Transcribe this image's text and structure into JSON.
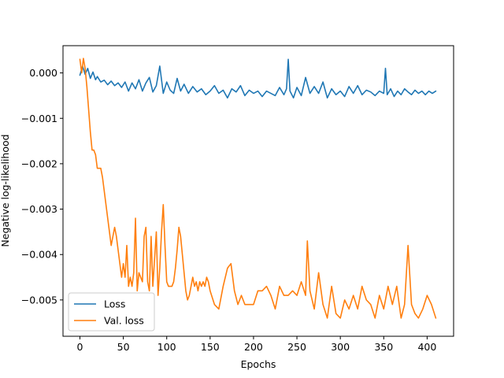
{
  "chart_data": {
    "type": "line",
    "title": "",
    "xlabel": "Epochs",
    "ylabel": "Negative log-likelihood",
    "xlim": [
      -19.5,
      430.5
    ],
    "ylim": [
      -0.0058,
      0.0006
    ],
    "xticks": [
      0,
      50,
      100,
      150,
      200,
      250,
      300,
      350,
      400
    ],
    "xtick_labels": [
      "0",
      "50",
      "100",
      "150",
      "200",
      "250",
      "300",
      "350",
      "400"
    ],
    "yticks": [
      0.0,
      -0.001,
      -0.002,
      -0.003,
      -0.004,
      -0.005
    ],
    "ytick_labels": [
      "0.000",
      "−0.001",
      "−0.002",
      "−0.003",
      "−0.004",
      "−0.005"
    ],
    "grid": false,
    "legend_position": "lower-left",
    "series": [
      {
        "name": "Loss",
        "color": "#1f77b4",
        "x": [
          0,
          3,
          6,
          9,
          12,
          15,
          18,
          20,
          24,
          28,
          32,
          36,
          40,
          44,
          48,
          52,
          56,
          60,
          64,
          68,
          72,
          76,
          80,
          84,
          88,
          92,
          96,
          100,
          104,
          108,
          112,
          116,
          120,
          125,
          130,
          135,
          140,
          145,
          150,
          155,
          160,
          165,
          170,
          175,
          180,
          185,
          190,
          195,
          200,
          205,
          210,
          215,
          220,
          225,
          230,
          235,
          238,
          240,
          242,
          246,
          250,
          255,
          260,
          265,
          270,
          275,
          280,
          285,
          290,
          295,
          300,
          305,
          310,
          315,
          320,
          325,
          330,
          335,
          340,
          345,
          350,
          352,
          354,
          358,
          362,
          366,
          370,
          374,
          378,
          382,
          386,
          390,
          394,
          398,
          402,
          406,
          410
        ],
        "values": [
          -5e-05,
          0.00015,
          -3e-05,
          0.0001,
          -0.00012,
          2e-05,
          -0.00015,
          -8e-05,
          -0.0002,
          -0.00016,
          -0.00026,
          -0.00018,
          -0.00028,
          -0.00022,
          -0.00032,
          -0.0002,
          -0.0004,
          -0.00022,
          -0.00035,
          -0.00015,
          -0.0004,
          -0.00022,
          -0.0001,
          -0.00042,
          -0.00028,
          0.00015,
          -0.00045,
          -0.0002,
          -0.00038,
          -0.00045,
          -0.00012,
          -0.0004,
          -0.00025,
          -0.00045,
          -0.0003,
          -0.00042,
          -0.00035,
          -0.00048,
          -0.0004,
          -0.00028,
          -0.00045,
          -0.00038,
          -0.00055,
          -0.00035,
          -0.00042,
          -0.00028,
          -0.0005,
          -0.00038,
          -0.00045,
          -0.0004,
          -0.00052,
          -0.0004,
          -0.00045,
          -0.0005,
          -0.00032,
          -0.00048,
          -0.00035,
          0.0003,
          -0.0004,
          -0.00055,
          -0.00032,
          -0.0005,
          -0.0001,
          -0.00045,
          -0.0003,
          -0.00045,
          -0.0002,
          -0.00055,
          -0.00035,
          -0.00048,
          -0.0004,
          -0.00052,
          -0.0003,
          -0.00045,
          -0.00028,
          -0.00048,
          -0.00038,
          -0.00042,
          -0.0005,
          -0.0004,
          -0.00045,
          0.0001,
          -0.00048,
          -0.00035,
          -0.00052,
          -0.0004,
          -0.00048,
          -0.00035,
          -0.00042,
          -0.00048,
          -0.00038,
          -0.00045,
          -0.0004,
          -0.00048,
          -0.0004,
          -0.00045,
          -0.0004
        ]
      },
      {
        "name": "Val. loss",
        "color": "#ff7f0e",
        "x": [
          0,
          2,
          4,
          6,
          8,
          10,
          12,
          14,
          16,
          18,
          20,
          22,
          24,
          26,
          28,
          30,
          32,
          34,
          36,
          38,
          40,
          42,
          44,
          46,
          48,
          50,
          52,
          54,
          56,
          58,
          60,
          62,
          64,
          66,
          68,
          70,
          72,
          74,
          76,
          78,
          80,
          82,
          84,
          86,
          88,
          90,
          92,
          94,
          96,
          98,
          100,
          102,
          104,
          106,
          108,
          110,
          112,
          114,
          116,
          118,
          120,
          122,
          124,
          126,
          128,
          130,
          132,
          134,
          136,
          138,
          140,
          142,
          144,
          146,
          148,
          150,
          155,
          160,
          165,
          170,
          174,
          178,
          182,
          186,
          190,
          195,
          200,
          205,
          210,
          215,
          220,
          225,
          230,
          235,
          240,
          245,
          250,
          255,
          260,
          262,
          265,
          270,
          275,
          280,
          285,
          290,
          295,
          300,
          305,
          310,
          315,
          320,
          325,
          330,
          335,
          340,
          345,
          350,
          355,
          360,
          365,
          370,
          374,
          378,
          382,
          386,
          390,
          395,
          400,
          405,
          410
        ],
        "values": [
          0.0003,
          0.0,
          0.00032,
          0.0001,
          -0.0003,
          -0.0008,
          -0.0013,
          -0.0017,
          -0.0017,
          -0.0018,
          -0.0021,
          -0.0021,
          -0.0021,
          -0.0023,
          -0.0026,
          -0.0029,
          -0.0032,
          -0.0035,
          -0.0038,
          -0.0036,
          -0.0034,
          -0.0036,
          -0.0039,
          -0.0042,
          -0.0045,
          -0.0042,
          -0.0045,
          -0.0038,
          -0.0047,
          -0.0045,
          -0.0047,
          -0.0044,
          -0.0032,
          -0.0048,
          -0.0044,
          -0.0045,
          -0.0046,
          -0.0036,
          -0.0034,
          -0.0046,
          -0.0048,
          -0.0036,
          -0.0047,
          -0.0041,
          -0.0035,
          -0.0049,
          -0.0043,
          -0.0035,
          -0.0029,
          -0.0038,
          -0.0046,
          -0.0047,
          -0.0047,
          -0.0047,
          -0.0046,
          -0.0043,
          -0.0039,
          -0.0034,
          -0.0036,
          -0.004,
          -0.0044,
          -0.0048,
          -0.005,
          -0.0049,
          -0.0047,
          -0.0045,
          -0.0047,
          -0.0046,
          -0.0048,
          -0.0046,
          -0.0047,
          -0.0046,
          -0.0047,
          -0.0045,
          -0.0046,
          -0.0048,
          -0.0051,
          -0.0052,
          -0.0047,
          -0.0043,
          -0.0042,
          -0.0048,
          -0.0051,
          -0.0049,
          -0.0051,
          -0.0051,
          -0.0051,
          -0.0048,
          -0.0048,
          -0.0047,
          -0.0049,
          -0.0052,
          -0.0047,
          -0.0049,
          -0.0049,
          -0.0048,
          -0.0049,
          -0.0046,
          -0.0049,
          -0.0037,
          -0.0048,
          -0.0052,
          -0.0044,
          -0.0051,
          -0.0054,
          -0.0047,
          -0.0053,
          -0.0054,
          -0.005,
          -0.0052,
          -0.0049,
          -0.0052,
          -0.0047,
          -0.005,
          -0.0051,
          -0.0054,
          -0.0049,
          -0.0052,
          -0.0047,
          -0.0051,
          -0.0047,
          -0.0054,
          -0.0051,
          -0.0038,
          -0.0051,
          -0.0053,
          -0.0054,
          -0.0052,
          -0.0049,
          -0.0051,
          -0.0054
        ]
      }
    ]
  }
}
